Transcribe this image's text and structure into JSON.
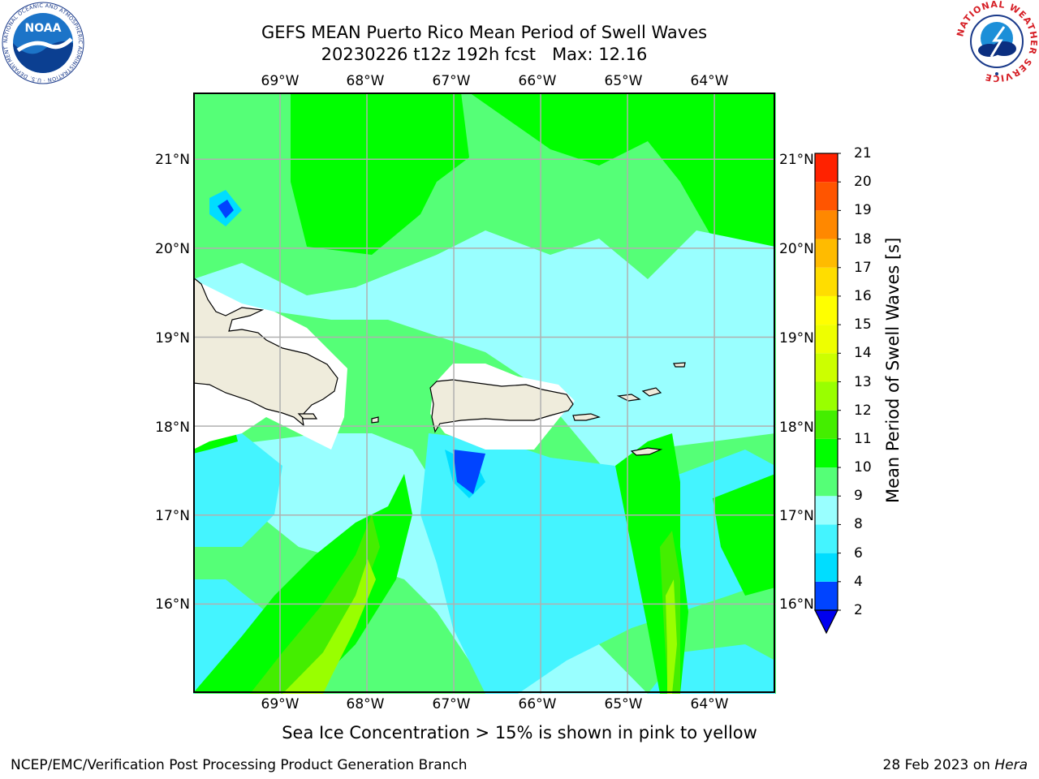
{
  "header": {
    "title_line1": "GEFS MEAN Puerto Rico Mean Period of Swell Waves",
    "title_line2": "20230226 t12z 192h fcst   Max: 12.16"
  },
  "map": {
    "lon_labels": [
      "69°W",
      "68°W",
      "67°W",
      "66°W",
      "65°W",
      "64°W"
    ],
    "lat_labels": [
      "21°N",
      "20°N",
      "19°N",
      "18°N",
      "17°N",
      "16°N"
    ],
    "extent": {
      "lon_min": -70.0,
      "lon_max": -63.3,
      "lat_min": 15.0,
      "lat_max": 21.75
    }
  },
  "colorbar": {
    "label": "Mean Period of Swell Waves [s]",
    "ticks": [
      "21",
      "20",
      "19",
      "18",
      "17",
      "16",
      "15",
      "14",
      "13",
      "12",
      "11",
      "10",
      "9",
      "8",
      "6",
      "4",
      "2"
    ],
    "levels": [
      2,
      4,
      6,
      8,
      9,
      10,
      11,
      12,
      13,
      14,
      15,
      16,
      17,
      18,
      19,
      20,
      21
    ],
    "colors": [
      "#0044ff",
      "#00ddff",
      "#44f4ff",
      "#99ffff",
      "#55ff77",
      "#00ff00",
      "#44ee00",
      "#99ff00",
      "#ccff00",
      "#eeff00",
      "#ffff00",
      "#ffdd00",
      "#ffbb00",
      "#ff8800",
      "#ff5500",
      "#ff2200"
    ],
    "under_color": "#0000ee"
  },
  "colors": {
    "land": "#efecdc",
    "grid": "#b0b0b0",
    "mask": "#ffffff"
  },
  "footer": {
    "note": "Sea Ice Concentration > 15% is shown in pink to yellow",
    "credit_left": "NCEP/EMC/Verification Post Processing Product Generation Branch",
    "credit_right_prefix": "28 Feb 2023 on ",
    "credit_right_host": "Hera"
  },
  "logos": {
    "left_text": "NOAA",
    "left_ring_text": "NATIONAL OCEANIC AND ATMOSPHERIC ADMINISTRATION · U.S. DEPARTMENT OF COMMERCE",
    "right_ring_text": "NATIONAL WEATHER SERVICE"
  }
}
